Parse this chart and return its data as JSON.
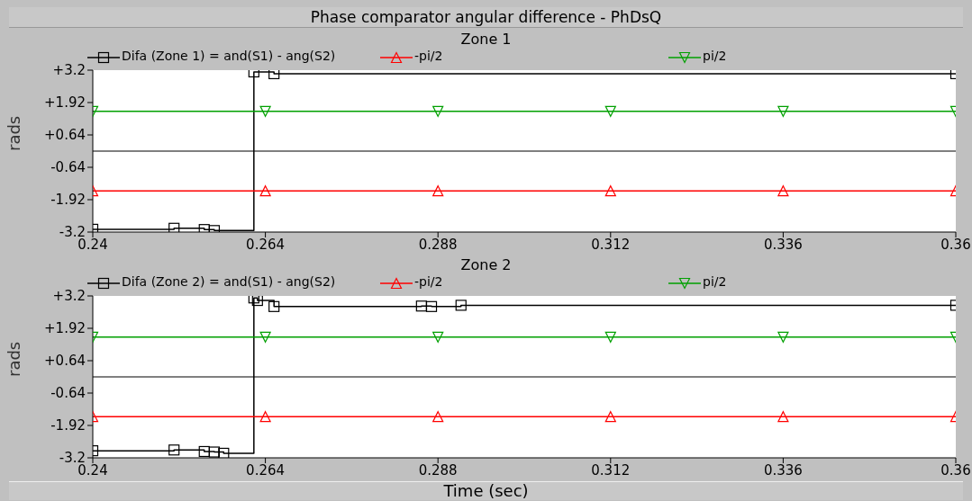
{
  "chart_data": [
    {
      "type": "line",
      "title": "Phase comparator angular difference - PhDsQ",
      "subtitle": "Zone 1",
      "ylabel": "rads",
      "legend": "top",
      "series": [
        {
          "name": "Difa (Zone 1) = and(S1) - ang(S2)",
          "type": "step",
          "marker": "square",
          "color": "#000000",
          "x": [
            0.24,
            0.2513,
            0.2555,
            0.2569,
            0.2624,
            0.2652,
            0.36
          ],
          "values": [
            -3.09,
            -3.05,
            -3.1,
            -3.14,
            3.13,
            3.06,
            3.06
          ]
        },
        {
          "name": "-pi/2",
          "marker": "triangle",
          "color": "#ff0000",
          "x": [
            0.24,
            0.264,
            0.288,
            0.312,
            0.336,
            0.36
          ],
          "values": [
            -1.57,
            -1.57,
            -1.57,
            -1.57,
            -1.57,
            -1.57
          ]
        },
        {
          "name": "pi/2",
          "marker": "triangle-down",
          "color": "#00a000",
          "x": [
            0.24,
            0.264,
            0.288,
            0.312,
            0.336,
            0.36
          ],
          "values": [
            1.57,
            1.57,
            1.57,
            1.57,
            1.57,
            1.57
          ]
        }
      ],
      "xlim": [
        0.24,
        0.36
      ],
      "xticks": [
        0.24,
        0.264,
        0.288,
        0.312,
        0.336,
        0.36
      ],
      "ylim": [
        -3.2,
        3.2
      ],
      "yticks": [
        {
          "value": -3.2,
          "label": "-3.2"
        },
        {
          "value": -1.92,
          "label": "-1.92"
        },
        {
          "value": -0.64,
          "label": "-0.64"
        },
        {
          "value": 0.64,
          "label": "+0.64"
        },
        {
          "value": 1.92,
          "label": "+1.92"
        },
        {
          "value": 3.2,
          "label": "+3.2"
        }
      ],
      "ref_lines": [
        {
          "axis": "y",
          "value": 0,
          "color": "#000000"
        }
      ],
      "grid": false
    },
    {
      "type": "line",
      "title": "Zone 2",
      "ylabel": "rads",
      "xlabel": "Time (sec)",
      "legend": "top",
      "series": [
        {
          "name": "Difa (Zone 2) = and(S1) - ang(S2)",
          "type": "step",
          "marker": "square",
          "color": "#000000",
          "x": [
            0.24,
            0.2513,
            0.2555,
            0.2569,
            0.2582,
            0.2624,
            0.2629,
            0.2652,
            0.2857,
            0.2871,
            0.2912,
            0.36
          ],
          "values": [
            -2.92,
            -2.89,
            -2.95,
            -2.97,
            -3.02,
            3.12,
            3.02,
            2.78,
            2.8,
            2.78,
            2.83,
            2.83
          ]
        },
        {
          "name": "-pi/2",
          "marker": "triangle",
          "color": "#ff0000",
          "x": [
            0.24,
            0.264,
            0.288,
            0.312,
            0.336,
            0.36
          ],
          "values": [
            -1.57,
            -1.57,
            -1.57,
            -1.57,
            -1.57,
            -1.57
          ]
        },
        {
          "name": "pi/2",
          "marker": "triangle-down",
          "color": "#00a000",
          "x": [
            0.24,
            0.264,
            0.288,
            0.312,
            0.336,
            0.36
          ],
          "values": [
            1.57,
            1.57,
            1.57,
            1.57,
            1.57,
            1.57
          ]
        }
      ],
      "xlim": [
        0.24,
        0.36
      ],
      "xticks": [
        0.24,
        0.264,
        0.288,
        0.312,
        0.336,
        0.36
      ],
      "ylim": [
        -3.2,
        3.2
      ],
      "yticks": [
        {
          "value": -3.2,
          "label": "-3.2"
        },
        {
          "value": -1.92,
          "label": "-1.92"
        },
        {
          "value": -0.64,
          "label": "-0.64"
        },
        {
          "value": 0.64,
          "label": "+0.64"
        },
        {
          "value": 1.92,
          "label": "+1.92"
        },
        {
          "value": 3.2,
          "label": "+3.2"
        }
      ],
      "ref_lines": [
        {
          "axis": "y",
          "value": 0,
          "color": "#000000"
        }
      ],
      "grid": false
    }
  ]
}
